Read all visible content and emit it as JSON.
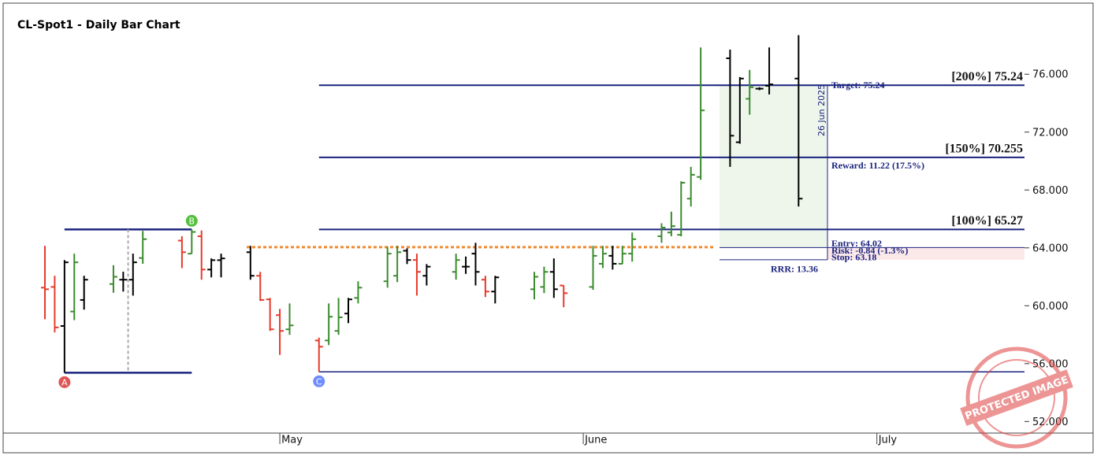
{
  "chart_data": {
    "type": "ohlc",
    "title": "CL-Spot1 - Daily Bar Chart",
    "categories": [
      null,
      null,
      null,
      null,
      null,
      null,
      null,
      null,
      null,
      null,
      null,
      null,
      null,
      null,
      null,
      null,
      null,
      null,
      null,
      null,
      null,
      null,
      null,
      null,
      "May",
      null,
      null,
      null,
      null,
      null,
      null,
      null,
      null,
      null,
      null,
      null,
      null,
      null,
      null,
      null,
      null,
      null,
      null,
      null,
      null,
      null,
      null,
      null,
      null,
      null,
      null,
      null,
      null,
      null,
      null,
      "June",
      null,
      null,
      null,
      null,
      null,
      null,
      null,
      null,
      null,
      null,
      null,
      null,
      null,
      null,
      null,
      null,
      null,
      null,
      null,
      null,
      null,
      null,
      null,
      null,
      null,
      null,
      null,
      null,
      null,
      "July",
      null,
      null,
      null,
      null,
      null,
      null,
      null,
      null,
      null,
      null,
      null,
      null,
      null,
      null,
      null
    ],
    "open": [
      61.25,
      61.3,
      58.6,
      59.6,
      60.4,
      null,
      null,
      61.5,
      61.8,
      61.8,
      63.3,
      null,
      null,
      null,
      64.5,
      63.6,
      64.8,
      62.5,
      63.15,
      null,
      null,
      63.7,
      62.07,
      60.44,
      59.35,
      58.37,
      null,
      null,
      57.6,
      57.6,
      58.26,
      59.46,
      60.54,
      null,
      null,
      61.69,
      62.07,
      63.8,
      63.16,
      62.07,
      null,
      null,
      62.34,
      62.7,
      63.6,
      61.8,
      60.98,
      null,
      null,
      null,
      61.14,
      61.3,
      62.34,
      61.4,
      null,
      null,
      61.3,
      62.9,
      63.45,
      62.9,
      63.6,
      null,
      null,
      64.8,
      65.06,
      64.9,
      67.4,
      68.9,
      null,
      null,
      77.1,
      71.3,
      74.3,
      75.0,
      75.2,
      null,
      null,
      75.7,
      null,
      null,
      null,
      null,
      null,
      null,
      null,
      null,
      null,
      null,
      null,
      null,
      null,
      null,
      null,
      null,
      null,
      null,
      null,
      null,
      null,
      null,
      null
    ],
    "high": [
      64.14,
      62.07,
      63.16,
      63.6,
      62.07,
      null,
      null,
      62.8,
      62.35,
      63.6,
      65.17,
      null,
      null,
      null,
      64.8,
      65.27,
      65.2,
      63.27,
      63.6,
      null,
      null,
      64.14,
      62.34,
      60.54,
      59.78,
      60.16,
      null,
      null,
      57.8,
      60.16,
      60.54,
      60.54,
      61.69,
      null,
      null,
      64.08,
      64.14,
      63.97,
      63.6,
      62.88,
      null,
      null,
      63.6,
      63.4,
      64.35,
      62.07,
      62.07,
      null,
      null,
      null,
      62.34,
      62.7,
      63.27,
      61.4,
      null,
      null,
      64.14,
      64.14,
      64.14,
      64.14,
      65.06,
      null,
      null,
      65.7,
      66.5,
      68.6,
      69.6,
      77.85,
      null,
      null,
      77.7,
      75.8,
      76.3,
      75.1,
      77.85,
      null,
      null,
      78.7,
      null,
      null,
      null,
      null,
      null,
      null,
      null,
      null,
      null,
      null,
      null,
      null,
      null,
      null,
      null,
      null,
      null,
      null,
      null,
      null,
      null,
      null,
      null
    ],
    "low": [
      59.07,
      58.16,
      55.37,
      59.0,
      59.73,
      null,
      null,
      60.9,
      60.98,
      60.7,
      62.9,
      null,
      null,
      null,
      62.6,
      63.6,
      61.8,
      61.96,
      61.96,
      null,
      null,
      61.8,
      60.33,
      58.26,
      56.6,
      57.99,
      null,
      null,
      55.43,
      57.28,
      57.99,
      58.8,
      60.16,
      null,
      null,
      61.25,
      61.63,
      62.88,
      60.7,
      61.4,
      null,
      null,
      61.8,
      62.2,
      61.4,
      60.6,
      60.16,
      null,
      null,
      null,
      60.44,
      60.87,
      60.54,
      59.9,
      null,
      null,
      61.1,
      62.6,
      62.5,
      62.88,
      63.05,
      null,
      null,
      64.35,
      64.8,
      64.8,
      66.86,
      68.7,
      null,
      null,
      69.6,
      71.2,
      73.2,
      74.9,
      74.6,
      null,
      null,
      66.86,
      null,
      null,
      null,
      null,
      null,
      null,
      null,
      null,
      null,
      null,
      null,
      null,
      null,
      null,
      null,
      null,
      null,
      null,
      null,
      null,
      null,
      null,
      null
    ],
    "close": [
      61.14,
      58.5,
      63.0,
      63.0,
      61.8,
      null,
      null,
      62.0,
      61.8,
      63.0,
      64.6,
      null,
      null,
      null,
      63.7,
      65.1,
      62.5,
      63.15,
      63.27,
      null,
      null,
      62.07,
      60.4,
      58.37,
      58.26,
      58.64,
      null,
      null,
      57.17,
      59.24,
      59.2,
      60.44,
      61.25,
      null,
      null,
      63.6,
      63.7,
      63.16,
      62.34,
      62.7,
      null,
      null,
      63.16,
      62.7,
      62.34,
      60.98,
      61.96,
      null,
      null,
      null,
      62.0,
      62.34,
      61.14,
      60.87,
      null,
      null,
      63.45,
      63.6,
      62.9,
      63.6,
      64.6,
      null,
      null,
      65.4,
      65.5,
      68.5,
      69.05,
      73.5,
      null,
      null,
      71.75,
      75.7,
      75.1,
      75.0,
      75.3,
      null,
      null,
      67.4,
      null,
      null,
      null,
      null,
      null,
      null,
      null,
      null,
      null,
      null,
      null,
      null,
      null,
      null,
      null,
      null,
      null,
      null,
      null,
      null,
      null,
      null,
      null
    ],
    "colors": [
      "#e53b2c",
      "#e53b2c",
      "#000000",
      "#3b8b2e",
      "#000000",
      null,
      null,
      "#3b8b2e",
      "#000000",
      "#000000",
      "#3b8b2e",
      null,
      null,
      null,
      "#e53b2c",
      "#3b8b2e",
      "#e53b2c",
      "#000000",
      "#000000",
      null,
      null,
      "#000000",
      "#e53b2c",
      "#e53b2c",
      "#e53b2c",
      "#3b8b2e",
      null,
      null,
      "#e53b2c",
      "#3b8b2e",
      "#3b8b2e",
      "#000000",
      "#3b8b2e",
      null,
      null,
      "#3b8b2e",
      "#3b8b2e",
      "#000000",
      "#e53b2c",
      "#000000",
      null,
      null,
      "#3b8b2e",
      "#000000",
      "#000000",
      "#e53b2c",
      "#000000",
      null,
      null,
      null,
      "#3b8b2e",
      "#3b8b2e",
      "#000000",
      "#e53b2c",
      null,
      null,
      "#3b8b2e",
      "#3b8b2e",
      "#000000",
      "#3b8b2e",
      "#3b8b2e",
      null,
      null,
      "#3b8b2e",
      "#3b8b2e",
      "#3b8b2e",
      "#3b8b2e",
      "#3b8b2e",
      null,
      null,
      "#000000",
      "#000000",
      "#3b8b2e",
      "#000000",
      "#000000",
      null,
      null,
      "#000000",
      null,
      null,
      null,
      null,
      null,
      null,
      null,
      null,
      null,
      null,
      null,
      null,
      null,
      null,
      null,
      null,
      null,
      null,
      null,
      null,
      null,
      null,
      null
    ],
    "ylim": [
      51.2,
      80.04
    ],
    "yticks": [
      {
        "value": 52,
        "label": "52.000"
      },
      {
        "value": 56,
        "label": "56.000"
      },
      {
        "value": 60,
        "label": "60.000"
      },
      {
        "value": 64,
        "label": "64.000"
      },
      {
        "value": 68,
        "label": "68.000"
      },
      {
        "value": 72,
        "label": "72.000"
      },
      {
        "value": 76,
        "label": "76.000"
      }
    ],
    "points": [
      {
        "label": "A",
        "value": 55.37,
        "color": "#e05555"
      },
      {
        "label": "B",
        "value": 65.27,
        "color": "#55c040"
      },
      {
        "label": "C",
        "value": 55.43,
        "color": "#6f8cff"
      }
    ],
    "levels": [
      {
        "label": "[200%] 75.24",
        "value": 75.24
      },
      {
        "label": "[150%] 70.255",
        "value": 70.255
      },
      {
        "label": "[100%] 65.27",
        "value": 65.27
      }
    ],
    "resistance": 64.05,
    "trade": {
      "target": 75.24,
      "entry": 64.02,
      "stop": 63.18,
      "target_label": "Target: 75.24",
      "reward_label": "Reward: 11.22 (17.5%)",
      "entry_label": "Entry: 64.02",
      "risk_label": "Risk: -0.84 (-1.3%)",
      "stop_label": "Stop: 63.18",
      "rrr_label": "RRR: 13.36",
      "date_label": "26 Jun 2025"
    },
    "watermark": "PROTECTED IMAGE"
  }
}
